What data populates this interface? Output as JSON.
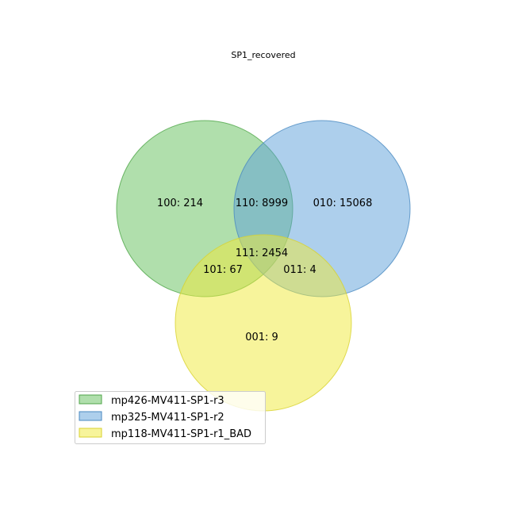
{
  "chart_data": {
    "type": "venn3",
    "title": "SP1_recovered",
    "sets": [
      {
        "key": "A",
        "name": "mp426-MV411-SP1-r3",
        "color": "#62bf5a",
        "edge": "#4fa648"
      },
      {
        "key": "B",
        "name": "mp325-MV411-SP1-r2",
        "color": "#5b9fd9",
        "edge": "#4a89c0"
      },
      {
        "key": "C",
        "name": "mp118-MV411-SP1-r1_BAD",
        "color": "#f0ea38",
        "edge": "#d8d230"
      }
    ],
    "regions": [
      {
        "code": "100",
        "count": 214,
        "label": "100: 214"
      },
      {
        "code": "110",
        "count": 8999,
        "label": "110: 8999"
      },
      {
        "code": "010",
        "count": 15068,
        "label": "010: 15068"
      },
      {
        "code": "111",
        "count": 2454,
        "label": "111: 2454"
      },
      {
        "code": "101",
        "count": 67,
        "label": "101: 67"
      },
      {
        "code": "011",
        "count": 4,
        "label": "011: 4"
      },
      {
        "code": "001",
        "count": 9,
        "label": "001: 9"
      }
    ],
    "legend_position": "bottom-left"
  }
}
